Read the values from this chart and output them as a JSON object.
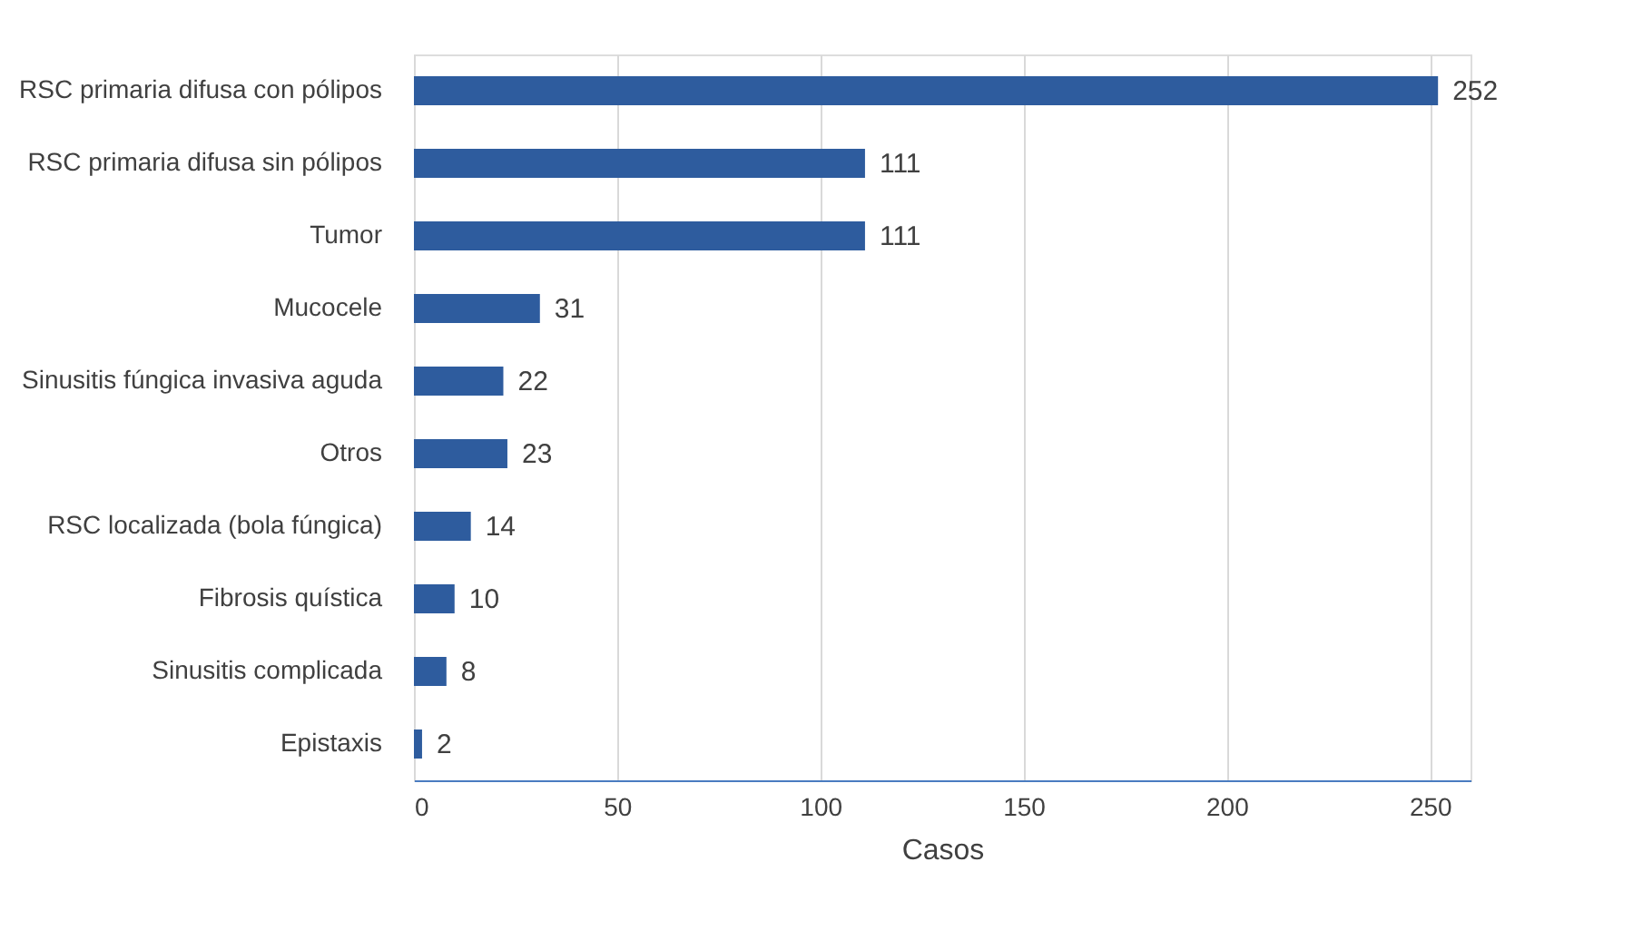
{
  "chart_data": {
    "type": "bar",
    "orientation": "horizontal",
    "xlabel": "Casos",
    "categories": [
      "RSC primaria difusa con pólipos",
      "RSC primaria difusa sin pólipos",
      "Tumor",
      "Mucocele",
      "Sinusitis fúngica invasiva aguda",
      "Otros",
      "RSC localizada (bola fúngica)",
      "Fibrosis quística",
      "Sinusitis complicada",
      "Epistaxis"
    ],
    "values": [
      252,
      111,
      111,
      31,
      22,
      23,
      14,
      10,
      8,
      2
    ],
    "color": "#2e5c9e",
    "xlim": [
      0,
      260
    ],
    "xticks": [
      0,
      50,
      100,
      150,
      200,
      250
    ],
    "grid": "x",
    "data_labels": true
  }
}
